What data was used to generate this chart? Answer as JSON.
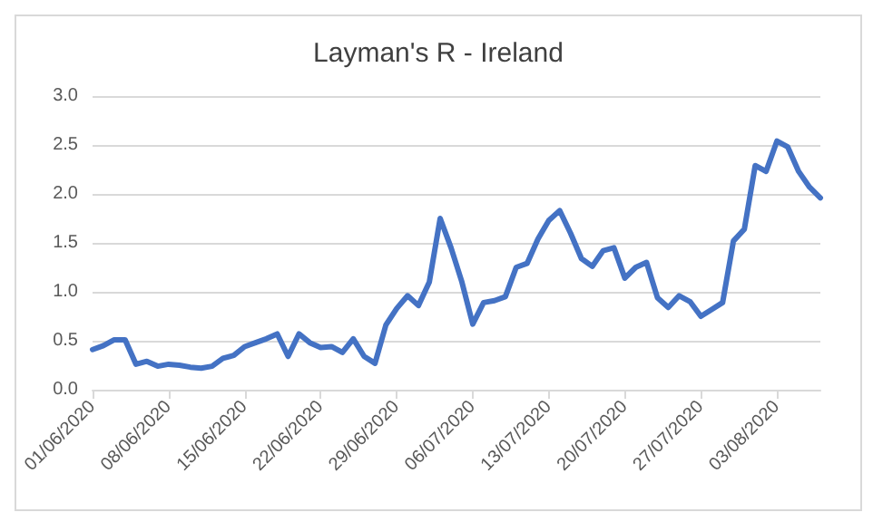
{
  "chart_data": {
    "type": "line",
    "title": "Layman's R - Ireland",
    "x": [
      "2020-06-01",
      "2020-06-02",
      "2020-06-03",
      "2020-06-04",
      "2020-06-05",
      "2020-06-06",
      "2020-06-07",
      "2020-06-08",
      "2020-06-09",
      "2020-06-10",
      "2020-06-11",
      "2020-06-12",
      "2020-06-13",
      "2020-06-14",
      "2020-06-15",
      "2020-06-16",
      "2020-06-17",
      "2020-06-18",
      "2020-06-19",
      "2020-06-20",
      "2020-06-21",
      "2020-06-22",
      "2020-06-23",
      "2020-06-24",
      "2020-06-25",
      "2020-06-26",
      "2020-06-27",
      "2020-06-28",
      "2020-06-29",
      "2020-06-30",
      "2020-07-01",
      "2020-07-02",
      "2020-07-03",
      "2020-07-04",
      "2020-07-05",
      "2020-07-06",
      "2020-07-07",
      "2020-07-08",
      "2020-07-09",
      "2020-07-10",
      "2020-07-11",
      "2020-07-12",
      "2020-07-13",
      "2020-07-14",
      "2020-07-15",
      "2020-07-16",
      "2020-07-17",
      "2020-07-18",
      "2020-07-19",
      "2020-07-20",
      "2020-07-21",
      "2020-07-22",
      "2020-07-23",
      "2020-07-24",
      "2020-07-25",
      "2020-07-26",
      "2020-07-27",
      "2020-07-28",
      "2020-07-29",
      "2020-07-30",
      "2020-07-31",
      "2020-08-01",
      "2020-08-02",
      "2020-08-03",
      "2020-08-04",
      "2020-08-05",
      "2020-08-06",
      "2020-08-07"
    ],
    "series": [
      {
        "color": "#4472c4",
        "values": [
          0.41,
          0.45,
          0.51,
          0.51,
          0.26,
          0.29,
          0.24,
          0.26,
          0.25,
          0.23,
          0.22,
          0.24,
          0.32,
          0.35,
          0.44,
          0.48,
          0.52,
          0.57,
          0.34,
          0.57,
          0.48,
          0.43,
          0.44,
          0.38,
          0.52,
          0.34,
          0.27,
          0.66,
          0.83,
          0.96,
          0.86,
          1.1,
          1.75,
          1.45,
          1.1,
          0.67,
          0.89,
          0.91,
          0.95,
          1.25,
          1.29,
          1.54,
          1.73,
          1.83,
          1.6,
          1.34,
          1.26,
          1.42,
          1.45,
          1.14,
          1.25,
          1.3,
          0.94,
          0.84,
          0.96,
          0.9,
          0.75,
          0.82,
          0.89,
          1.52,
          1.64,
          2.29,
          2.23,
          2.54,
          2.48,
          2.23,
          2.07,
          1.96
        ]
      }
    ],
    "xlim": [
      "2020-06-01",
      "2020-08-07"
    ],
    "xticks": [
      {
        "value": "2020-06-01",
        "label": "01/06/2020"
      },
      {
        "value": "2020-06-08",
        "label": "08/06/2020"
      },
      {
        "value": "2020-06-15",
        "label": "15/06/2020"
      },
      {
        "value": "2020-06-22",
        "label": "22/06/2020"
      },
      {
        "value": "2020-06-29",
        "label": "29/06/2020"
      },
      {
        "value": "2020-07-06",
        "label": "06/07/2020"
      },
      {
        "value": "2020-07-13",
        "label": "13/07/2020"
      },
      {
        "value": "2020-07-20",
        "label": "20/07/2020"
      },
      {
        "value": "2020-07-27",
        "label": "27/07/2020"
      },
      {
        "value": "2020-08-03",
        "label": "03/08/2020"
      }
    ],
    "ylim": [
      0,
      3
    ],
    "yticks": [
      {
        "value": 0,
        "label": "0.0"
      },
      {
        "value": 0.5,
        "label": "0.5"
      },
      {
        "value": 1,
        "label": "1.0"
      },
      {
        "value": 1.5,
        "label": "1.5"
      },
      {
        "value": 2,
        "label": "2.0"
      },
      {
        "value": 2.5,
        "label": "2.5"
      },
      {
        "value": 3,
        "label": "3.0"
      }
    ],
    "grid": "y",
    "marker": "none",
    "line_style": "solid"
  }
}
